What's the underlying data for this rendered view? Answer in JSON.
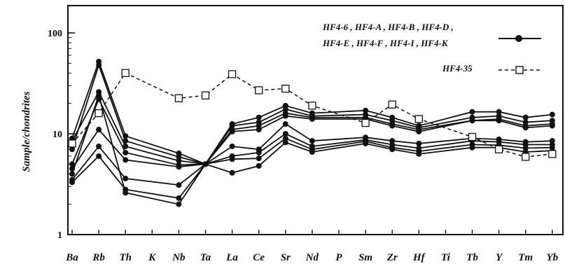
{
  "chart_data": {
    "type": "line",
    "title": "",
    "xlabel": "",
    "ylabel": "Sample/chondrites",
    "yscale": "log",
    "ylim": [
      1,
      150
    ],
    "yticks": [
      {
        "value": 1,
        "label": "1"
      },
      {
        "value": 10,
        "label": "10"
      },
      {
        "value": 100,
        "label": "100"
      }
    ],
    "grid": false,
    "legend_position": "top-right",
    "categories": [
      "Ba",
      "Rb",
      "Th",
      "K",
      "Nb",
      "Ta",
      "La",
      "Ce",
      "Sr",
      "Nd",
      "P",
      "Sm",
      "Zr",
      "Hf",
      "Ti",
      "Tb",
      "Y",
      "Tm",
      "Yb"
    ],
    "legend": [
      {
        "lines": [
          "HF4-6 , HF4-A , HF4-B , HF4-D ,",
          "HF4-E , HF4-F , HF4-I , HF4-K"
        ],
        "style": "solid-filled-circle"
      },
      {
        "lines": [
          "HF4-35"
        ],
        "style": "dashed-open-square"
      }
    ],
    "series": [
      {
        "group": "solid",
        "values": [
          9.0,
          52,
          9.5,
          null,
          6.4,
          5.0,
          12.5,
          14.5,
          19,
          16,
          null,
          17,
          14.5,
          12,
          null,
          16.5,
          16.5,
          14.5,
          15.5
        ]
      },
      {
        "group": "solid",
        "values": [
          7.0,
          48,
          8.5,
          null,
          5.9,
          5.0,
          12,
          13,
          17.5,
          15,
          null,
          15.5,
          13.5,
          11.5,
          null,
          14.5,
          15,
          13,
          13.5
        ]
      },
      {
        "group": "solid",
        "values": [
          8.5,
          26,
          7.5,
          null,
          5.4,
          5.0,
          11,
          12,
          16,
          14.5,
          null,
          14.5,
          12.5,
          11,
          null,
          13.5,
          14,
          12,
          12.5
        ]
      },
      {
        "group": "solid",
        "values": [
          5.0,
          22,
          6.5,
          null,
          4.9,
          5.0,
          10.5,
          11,
          15,
          14,
          null,
          14,
          12,
          10.5,
          null,
          13.5,
          13.5,
          11.5,
          12
        ]
      },
      {
        "group": "solid",
        "values": [
          4.5,
          11,
          5.5,
          null,
          4.7,
          5.0,
          7.5,
          7.0,
          12.5,
          8.5,
          null,
          9.2,
          8.5,
          8.0,
          null,
          9.0,
          8.8,
          8.3,
          8.5
        ]
      },
      {
        "group": "solid",
        "values": [
          3.5,
          7.5,
          3.6,
          null,
          3.1,
          5.0,
          6.0,
          6.5,
          10,
          7.5,
          null,
          8.7,
          7.8,
          7.2,
          null,
          8.5,
          8.3,
          7.8,
          7.8
        ]
      },
      {
        "group": "solid",
        "values": [
          3.3,
          6.0,
          2.8,
          null,
          2.3,
          5.0,
          5.6,
          5.7,
          9.0,
          7.0,
          null,
          8.4,
          7.3,
          6.7,
          null,
          7.8,
          7.7,
          7.2,
          7.3
        ]
      },
      {
        "group": "solid",
        "values": [
          4.0,
          24,
          2.6,
          null,
          2.0,
          5.0,
          4.1,
          4.8,
          8.2,
          6.6,
          null,
          8.0,
          7.0,
          6.3,
          null,
          7.3,
          7.3,
          6.6,
          6.8
        ]
      },
      {
        "group": "dashed",
        "name": "HF4-35",
        "values": [
          8.0,
          16,
          40,
          null,
          22.5,
          24,
          39,
          27,
          28,
          19,
          null,
          12.8,
          19.5,
          14,
          null,
          9.3,
          7.0,
          5.9,
          6.3
        ]
      }
    ]
  }
}
